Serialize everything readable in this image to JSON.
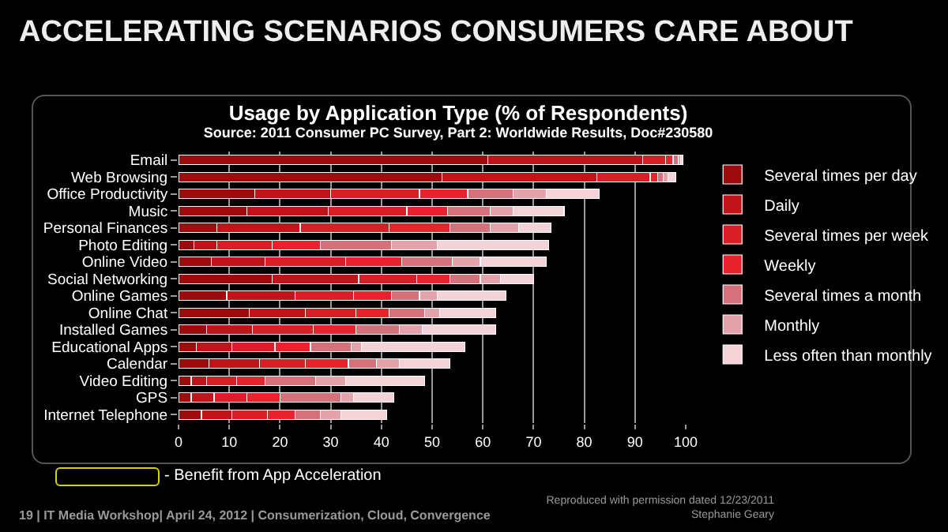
{
  "chart_data": {
    "type": "bar",
    "orientation": "horizontal",
    "stacked": true,
    "title": "ACCELERATING SCENARIOS CONSUMERS CARE ABOUT",
    "subtitle": "Usage by Application Type (% of Respondents)",
    "annotations": [
      "Source: 2011 Consumer PC Survey, Part 2: Worldwide Results, Doc#230580",
      "- Benefit from App Acceleration",
      "19 | IT Media Workshop| April 24, 2012 | Consumerization, Cloud, Convergence",
      "Reproduced with permission dated 12/23/2011",
      "Stephanie Geary"
    ],
    "categories": [
      "Email",
      "Web Browsing",
      "Office Productivity",
      "Music",
      "Personal Finances",
      "Photo Editing",
      "Online Video",
      "Social Networking",
      "Online Games",
      "Online Chat",
      "Installed Games",
      "Educational Apps",
      "Calendar",
      "Video Editing",
      "GPS",
      "Internet Telephone"
    ],
    "series": [
      {
        "name": "Several times per day",
        "color": "#9e0b0f",
        "values": [
          61,
          52,
          15,
          13.5,
          7.5,
          3,
          6.5,
          18.5,
          9.5,
          14,
          5.5,
          3.5,
          6,
          2.5,
          2.5,
          4.5
        ]
      },
      {
        "name": "Daily",
        "color": "#c0141b",
        "values": [
          30.5,
          30.5,
          15,
          16,
          16.5,
          4.5,
          10.5,
          17,
          13.5,
          11,
          9,
          7,
          10,
          3,
          4.5,
          6
        ]
      },
      {
        "name": "Several times per week",
        "color": "#d81e26",
        "values": [
          4.5,
          10.5,
          17.5,
          15.5,
          17.5,
          11,
          16,
          11.5,
          11.5,
          10,
          12,
          8.5,
          9,
          6,
          6.5,
          7
        ]
      },
      {
        "name": "Weekly",
        "color": "#e8232d",
        "values": [
          1.5,
          1.5,
          9.5,
          8,
          12,
          9.5,
          11,
          6.5,
          7.5,
          6.5,
          8.5,
          7,
          8.5,
          5.5,
          6.5,
          5.5
        ]
      },
      {
        "name": "Several times a month",
        "color": "#d4717a",
        "values": [
          1,
          1,
          9,
          8.5,
          8,
          14,
          10,
          6,
          5.5,
          7,
          8.5,
          8,
          5.5,
          10,
          12,
          5
        ]
      },
      {
        "name": "Monthly",
        "color": "#e3a3aa",
        "values": [
          0.5,
          1,
          6.5,
          4.5,
          5.5,
          9,
          5.5,
          4,
          3.5,
          3,
          4.5,
          2,
          4.5,
          6,
          2.5,
          4
        ]
      },
      {
        "name": "Less often than monthly",
        "color": "#f3d3d7",
        "values": [
          0.5,
          1.5,
          10.5,
          10,
          6.5,
          22,
          13,
          6.5,
          13.5,
          11,
          14.5,
          20.5,
          10,
          15.5,
          8,
          9
        ]
      }
    ],
    "xlim": [
      0,
      100
    ],
    "xticks": [
      0,
      10,
      20,
      30,
      40,
      50,
      60,
      70,
      80,
      90,
      100
    ],
    "grid": "x",
    "legend": "right"
  }
}
